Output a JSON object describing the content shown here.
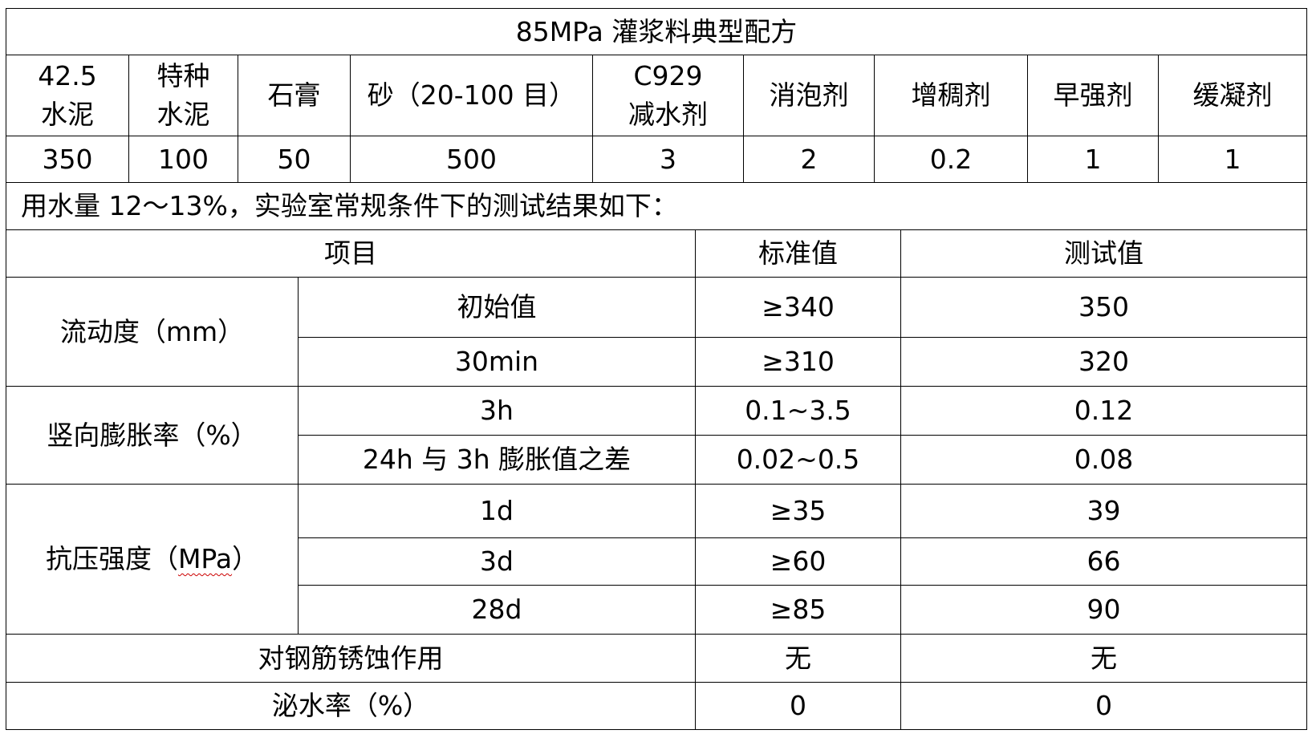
{
  "title": "85MPa 灌浆料典型配方",
  "formula": {
    "headers": [
      "42.5\n水泥",
      "特种\n水泥",
      "石膏",
      "砂（20-100 目）",
      "C929\n减水剂",
      "消泡剂",
      "增稠剂",
      "早强剂",
      "缓凝剂"
    ],
    "values": [
      "350",
      "100",
      "50",
      "500",
      "3",
      "2",
      "0.2",
      "1",
      "1"
    ]
  },
  "note": "用水量 12～13%，实验室常规条件下的测试结果如下：",
  "results": {
    "headers": [
      "项目",
      "标准值",
      "测试值"
    ],
    "groups": [
      {
        "name": "流动度（mm）",
        "rows": [
          {
            "item": "初始值",
            "standard": "≥340",
            "test": "350"
          },
          {
            "item": "30min",
            "standard": "≥310",
            "test": "320"
          }
        ]
      },
      {
        "name": "竖向膨胀率（%）",
        "rows": [
          {
            "item": "3h",
            "standard": "0.1~3.5",
            "test": "0.12"
          },
          {
            "item": "24h 与 3h 膨胀值之差",
            "standard": "0.02~0.5",
            "test": "0.08"
          }
        ]
      },
      {
        "name_prefix": "抗压强度（",
        "name_unit": "MPa",
        "name_suffix": "）",
        "rows": [
          {
            "item": "1d",
            "standard": "≥35",
            "test": "39"
          },
          {
            "item": "3d",
            "standard": "≥60",
            "test": "66"
          },
          {
            "item": "28d",
            "standard": "≥85",
            "test": "90"
          }
        ]
      }
    ],
    "single_rows": [
      {
        "item": "对钢筋锈蚀作用",
        "standard": "无",
        "test": "无"
      },
      {
        "item": "泌水率（%）",
        "standard": "0",
        "test": "0"
      }
    ]
  }
}
